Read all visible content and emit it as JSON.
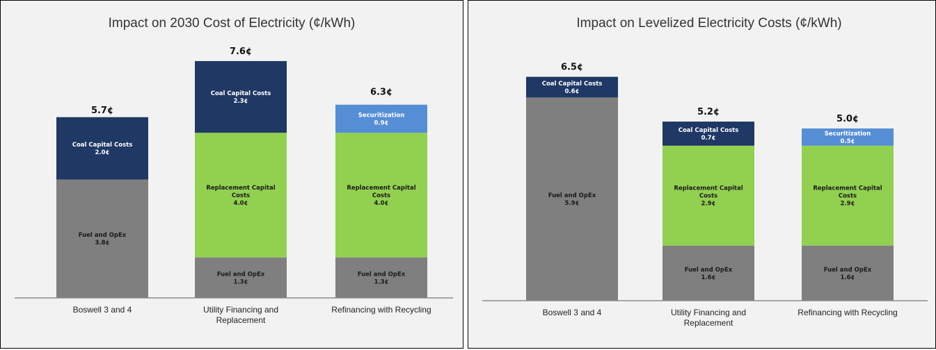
{
  "chart_data": [
    {
      "type": "bar",
      "stacked": true,
      "title": "Impact on 2030 Cost of Electricity (¢/kWh)",
      "categories": [
        [
          "Boswell 3 and 4"
        ],
        [
          "Utility Financing and",
          "Replacement"
        ],
        [
          "Refinancing with Recycling"
        ]
      ],
      "totals": [
        "5.7¢",
        "7.6¢",
        "6.3¢"
      ],
      "total_values": [
        5.7,
        7.6,
        6.3
      ],
      "ylim": [
        0,
        8.2
      ],
      "grid": false,
      "legend": "none",
      "bars": [
        [
          {
            "name": [
              "Fuel and OpEx"
            ],
            "label": "3.8¢",
            "value": 3.8,
            "color": "#7f7f7f",
            "text_color": "#1a1a1a"
          },
          {
            "name": [
              "Coal Capital Costs"
            ],
            "label": "2.0¢",
            "value": 2.0,
            "color": "#1f3864",
            "text_color": "#ffffff"
          }
        ],
        [
          {
            "name": [
              "Fuel and OpEx"
            ],
            "label": "1.3¢",
            "value": 1.3,
            "color": "#7f7f7f",
            "text_color": "#1a1a1a"
          },
          {
            "name": [
              "Replacement Capital",
              "Costs"
            ],
            "label": "4.0¢",
            "value": 4.0,
            "color": "#92d050",
            "text_color": "#1a1a1a"
          },
          {
            "name": [
              "Coal Capital Costs"
            ],
            "label": "2.3¢",
            "value": 2.3,
            "color": "#1f3864",
            "text_color": "#ffffff"
          }
        ],
        [
          {
            "name": [
              "Fuel and OpEx"
            ],
            "label": "1.3¢",
            "value": 1.3,
            "color": "#7f7f7f",
            "text_color": "#1a1a1a"
          },
          {
            "name": [
              "Replacement Capital",
              "Costs"
            ],
            "label": "4.0¢",
            "value": 4.0,
            "color": "#92d050",
            "text_color": "#1a1a1a"
          },
          {
            "name": [
              "Securitization"
            ],
            "label": "0.9¢",
            "value": 0.9,
            "color": "#558ed5",
            "text_color": "#ffffff"
          }
        ]
      ]
    },
    {
      "type": "bar",
      "stacked": true,
      "title": "Impact on Levelized Electricity Costs (¢/kWh)",
      "categories": [
        [
          "Boswell 3 and 4"
        ],
        [
          "Utility Financing and",
          "Replacement"
        ],
        [
          "Refinancing with Recycling"
        ]
      ],
      "totals": [
        "6.5¢",
        "5.2¢",
        "5.0¢"
      ],
      "total_values": [
        6.5,
        5.2,
        5.0
      ],
      "ylim": [
        0,
        7.5
      ],
      "grid": false,
      "legend": "none",
      "bars": [
        [
          {
            "name": [
              "Fuel and OpEx"
            ],
            "label": "5.9¢",
            "value": 5.9,
            "color": "#7f7f7f",
            "text_color": "#1a1a1a"
          },
          {
            "name": [
              "Coal Capital Costs"
            ],
            "label": "0.6¢",
            "value": 0.6,
            "color": "#1f3864",
            "text_color": "#ffffff"
          }
        ],
        [
          {
            "name": [
              "Fuel and OpEx"
            ],
            "label": "1.6¢",
            "value": 1.6,
            "color": "#7f7f7f",
            "text_color": "#1a1a1a"
          },
          {
            "name": [
              "Replacement Capital",
              "Costs"
            ],
            "label": "2.9¢",
            "value": 2.9,
            "color": "#92d050",
            "text_color": "#1a1a1a"
          },
          {
            "name": [
              "Coal Capital Costs"
            ],
            "label": "0.7¢",
            "value": 0.7,
            "color": "#1f3864",
            "text_color": "#ffffff"
          }
        ],
        [
          {
            "name": [
              "Fuel and OpEx"
            ],
            "label": "1.6¢",
            "value": 1.6,
            "color": "#7f7f7f",
            "text_color": "#1a1a1a"
          },
          {
            "name": [
              "Replacement Capital",
              "Costs"
            ],
            "label": "2.9¢",
            "value": 2.9,
            "color": "#92d050",
            "text_color": "#1a1a1a"
          },
          {
            "name": [
              "Securitization"
            ],
            "label": "0.5¢",
            "value": 0.5,
            "color": "#558ed5",
            "text_color": "#ffffff"
          }
        ]
      ]
    }
  ]
}
